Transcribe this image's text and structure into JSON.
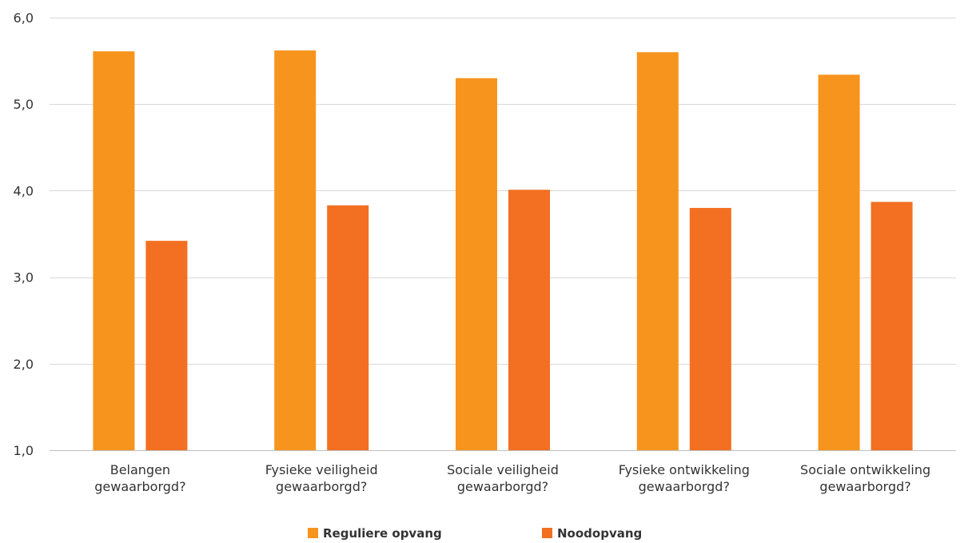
{
  "chart_data": {
    "type": "bar",
    "title": "",
    "xlabel": "",
    "ylabel": "",
    "ylim": [
      1.0,
      6.0
    ],
    "yticks": [
      "1,0",
      "2,0",
      "3,0",
      "4,0",
      "5,0",
      "6,0"
    ],
    "ytick_values": [
      1,
      2,
      3,
      4,
      5,
      6
    ],
    "grid": true,
    "legend_position": "bottom",
    "categories": [
      [
        "Belangen",
        "gewaarborgd?"
      ],
      [
        "Fysieke veiligheid",
        "gewaarborgd?"
      ],
      [
        "Sociale veiligheid",
        "gewaarborgd?"
      ],
      [
        "Fysieke ontwikkeling",
        "gewaarborgd?"
      ],
      [
        "Sociale ontwikkeling",
        "gewaarborgd?"
      ]
    ],
    "series": [
      {
        "name": "Reguliere opvang",
        "color": "#F7941D",
        "values": [
          5.61,
          5.62,
          5.3,
          5.6,
          5.34
        ]
      },
      {
        "name": "Noodopvang",
        "color": "#F36F21",
        "values": [
          3.42,
          3.83,
          4.01,
          3.8,
          3.87
        ]
      }
    ]
  }
}
